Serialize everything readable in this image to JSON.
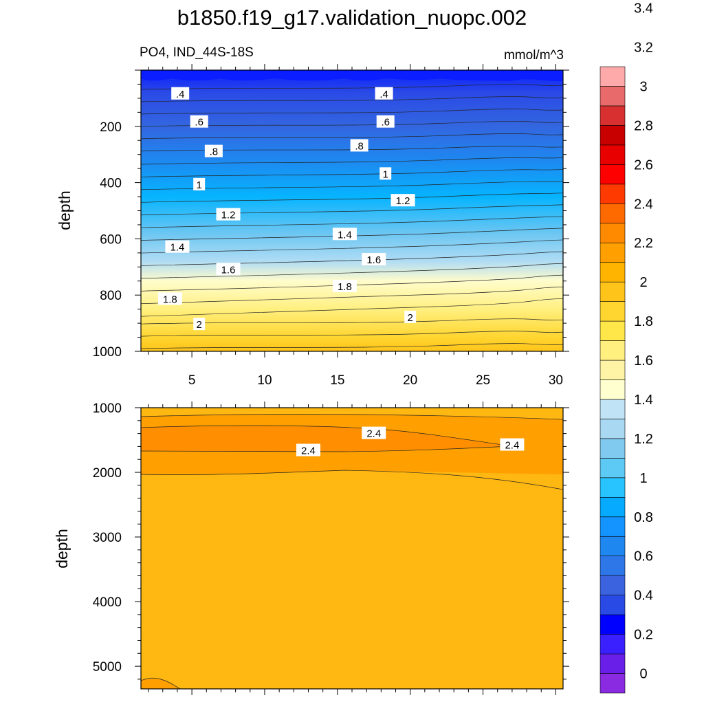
{
  "title": "b1850.f19_g17.validation_nuopc.002",
  "variable_label": "PO4, IND_44S-18S",
  "units": "mmol/m^3",
  "colorbar": {
    "tick_labels": [
      "0",
      "0.2",
      "0.4",
      "0.6",
      "0.8",
      "1",
      "1.2",
      "1.4",
      "1.6",
      "1.8",
      "2",
      "2.2",
      "2.4",
      "2.6",
      "2.8",
      "3",
      "3.2",
      "3.4"
    ],
    "colors": [
      "#8a2be2",
      "#6a1fe8",
      "#3a1fff",
      "#0000ff",
      "#2a4ae6",
      "#3b63e0",
      "#2e77e8",
      "#1e88f0",
      "#1494ff",
      "#06aaff",
      "#28c4ff",
      "#5ccaf5",
      "#80caf0",
      "#a8d8f2",
      "#c0e4f6",
      "#ffffd0",
      "#fff4a6",
      "#fff080",
      "#ffe74a",
      "#ffd630",
      "#ffc41a",
      "#ffb400",
      "#ffa000",
      "#ff8a00",
      "#ff6a00",
      "#ff3a00",
      "#ff0000",
      "#e80000",
      "#c80000",
      "#d83030",
      "#e86a6a",
      "#ffaaaa"
    ]
  },
  "chart_data": [
    {
      "type": "contour",
      "panel": "upper",
      "xlabel": "",
      "ylabel": "depth",
      "xlim": [
        1.5,
        30.5
      ],
      "ylim": [
        1000,
        0
      ],
      "x_ticks": [
        "5",
        "10",
        "15",
        "20",
        "25",
        "30"
      ],
      "y_ticks": [
        "200",
        "400",
        "600",
        "800",
        "1000"
      ],
      "contour_labels": [
        {
          "text": ".4",
          "x": 4.2,
          "y": 85
        },
        {
          "text": ".4",
          "x": 18.2,
          "y": 85
        },
        {
          "text": ".6",
          "x": 5.5,
          "y": 185
        },
        {
          "text": ".6",
          "x": 18.3,
          "y": 185
        },
        {
          "text": ".8",
          "x": 6.5,
          "y": 290
        },
        {
          "text": ".8",
          "x": 16.5,
          "y": 270
        },
        {
          "text": "1",
          "x": 5.5,
          "y": 408
        },
        {
          "text": "1",
          "x": 18.3,
          "y": 370
        },
        {
          "text": "1.2",
          "x": 7.5,
          "y": 515
        },
        {
          "text": "1.2",
          "x": 19.5,
          "y": 465
        },
        {
          "text": "1.4",
          "x": 4,
          "y": 630
        },
        {
          "text": "1.4",
          "x": 15.5,
          "y": 585
        },
        {
          "text": "1.6",
          "x": 7.5,
          "y": 710
        },
        {
          "text": "1.6",
          "x": 17.5,
          "y": 675
        },
        {
          "text": "1.8",
          "x": 3.5,
          "y": 815
        },
        {
          "text": "1.8",
          "x": 15.5,
          "y": 770
        },
        {
          "text": "2",
          "x": 5.5,
          "y": 905
        },
        {
          "text": "2",
          "x": 20,
          "y": 880
        }
      ]
    },
    {
      "type": "contour",
      "panel": "lower",
      "xlabel": "",
      "ylabel": "depth",
      "xlim": [
        1.5,
        30.5
      ],
      "ylim": [
        5350,
        1000
      ],
      "x_ticks": [],
      "y_ticks": [
        "1000",
        "2000",
        "3000",
        "4000",
        "5000"
      ],
      "contour_labels": [
        {
          "text": "2.4",
          "x": 17.5,
          "y": 1400
        },
        {
          "text": "2.4",
          "x": 13,
          "y": 1665
        },
        {
          "text": "2.4",
          "x": 27,
          "y": 1580
        }
      ]
    }
  ]
}
